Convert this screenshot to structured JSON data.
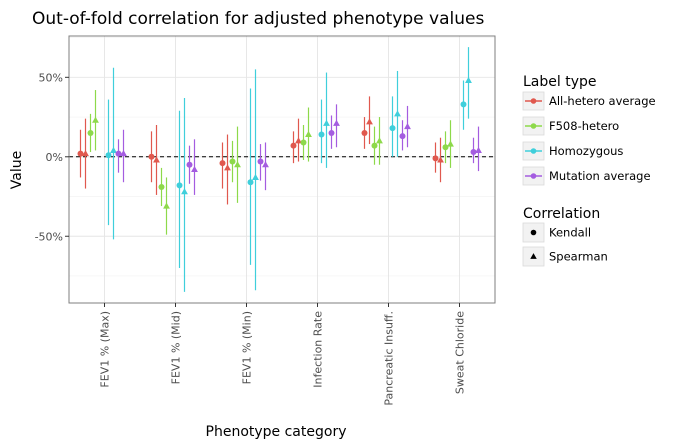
{
  "chart_data": {
    "type": "scatter",
    "title": "Out-of-fold correlation for adjusted phenotype values",
    "xlabel": "Phenotype category",
    "ylabel": "Value",
    "categories": [
      "FEV1 % (Max)",
      "FEV1 % (Mid)",
      "FEV1 % (Min)",
      "Infection Rate",
      "Pancreatic Insuff.",
      "Sweat Chloride"
    ],
    "y_ticks": [
      {
        "value": 0.5,
        "label": "50%"
      },
      {
        "value": 0.0,
        "label": "0%"
      },
      {
        "value": -0.5,
        "label": "-50%"
      }
    ],
    "ylim": [
      -0.92,
      0.76
    ],
    "reference_line": {
      "y": 0.0,
      "style": "dashed"
    },
    "grid": true,
    "legend_placement": "right",
    "legend": {
      "label_type_title": "Label type",
      "correlation_title": "Correlation",
      "label_types": [
        {
          "name": "All-hetero average",
          "color": "#E0584E"
        },
        {
          "name": "F508-hetero",
          "color": "#8DD94A"
        },
        {
          "name": "Homozygous",
          "color": "#3FCFDB"
        },
        {
          "name": "Mutation average",
          "color": "#A45CE0"
        }
      ],
      "correlations": [
        {
          "name": "Kendall",
          "shape": "circle"
        },
        {
          "name": "Spearman",
          "shape": "triangle"
        }
      ]
    },
    "series": [
      {
        "label_type": "All-hetero average",
        "correlation": "Kendall",
        "values": [
          0.02,
          0.0,
          -0.04,
          0.07,
          0.15,
          -0.01
        ],
        "low": [
          -0.13,
          -0.16,
          -0.2,
          -0.04,
          0.05,
          -0.1
        ],
        "high": [
          0.17,
          0.16,
          0.09,
          0.16,
          0.25,
          0.09
        ]
      },
      {
        "label_type": "All-hetero average",
        "correlation": "Spearman",
        "values": [
          0.02,
          -0.02,
          -0.07,
          0.1,
          0.22,
          -0.02
        ],
        "low": [
          -0.2,
          -0.24,
          -0.3,
          -0.03,
          0.08,
          -0.16
        ],
        "high": [
          0.24,
          0.2,
          0.14,
          0.24,
          0.38,
          0.12
        ]
      },
      {
        "label_type": "F508-hetero",
        "correlation": "Kendall",
        "values": [
          0.15,
          -0.19,
          -0.03,
          0.09,
          0.07,
          0.06
        ],
        "low": [
          0.03,
          -0.31,
          -0.16,
          -0.02,
          -0.05,
          -0.04
        ],
        "high": [
          0.27,
          -0.07,
          0.1,
          0.2,
          0.19,
          0.16
        ]
      },
      {
        "label_type": "F508-hetero",
        "correlation": "Spearman",
        "values": [
          0.23,
          -0.31,
          -0.05,
          0.14,
          0.1,
          0.08
        ],
        "low": [
          0.04,
          -0.49,
          -0.29,
          -0.03,
          -0.05,
          -0.07
        ],
        "high": [
          0.42,
          -0.13,
          0.19,
          0.31,
          0.25,
          0.23
        ]
      },
      {
        "label_type": "Homozygous",
        "correlation": "Kendall",
        "values": [
          0.01,
          -0.18,
          -0.16,
          0.14,
          0.18,
          0.33
        ],
        "low": [
          -0.43,
          -0.7,
          -0.68,
          -0.04,
          0.0,
          0.17
        ],
        "high": [
          0.36,
          0.29,
          0.43,
          0.36,
          0.38,
          0.48
        ]
      },
      {
        "label_type": "Homozygous",
        "correlation": "Spearman",
        "values": [
          0.04,
          -0.22,
          -0.13,
          0.21,
          0.27,
          0.48
        ],
        "low": [
          -0.52,
          -0.85,
          -0.84,
          -0.07,
          0.0,
          0.24
        ],
        "high": [
          0.56,
          0.37,
          0.55,
          0.53,
          0.54,
          0.69
        ]
      },
      {
        "label_type": "Mutation average",
        "correlation": "Kendall",
        "values": [
          0.02,
          -0.05,
          -0.03,
          0.15,
          0.13,
          0.03
        ],
        "low": [
          -0.1,
          -0.17,
          -0.15,
          0.05,
          0.04,
          -0.04
        ],
        "high": [
          0.11,
          0.07,
          0.08,
          0.26,
          0.23,
          0.12
        ]
      },
      {
        "label_type": "Mutation average",
        "correlation": "Spearman",
        "values": [
          0.02,
          -0.08,
          -0.05,
          0.21,
          0.19,
          0.04
        ],
        "low": [
          -0.16,
          -0.24,
          -0.21,
          0.06,
          0.06,
          -0.09
        ],
        "high": [
          0.17,
          0.11,
          0.09,
          0.33,
          0.32,
          0.19
        ]
      }
    ]
  }
}
